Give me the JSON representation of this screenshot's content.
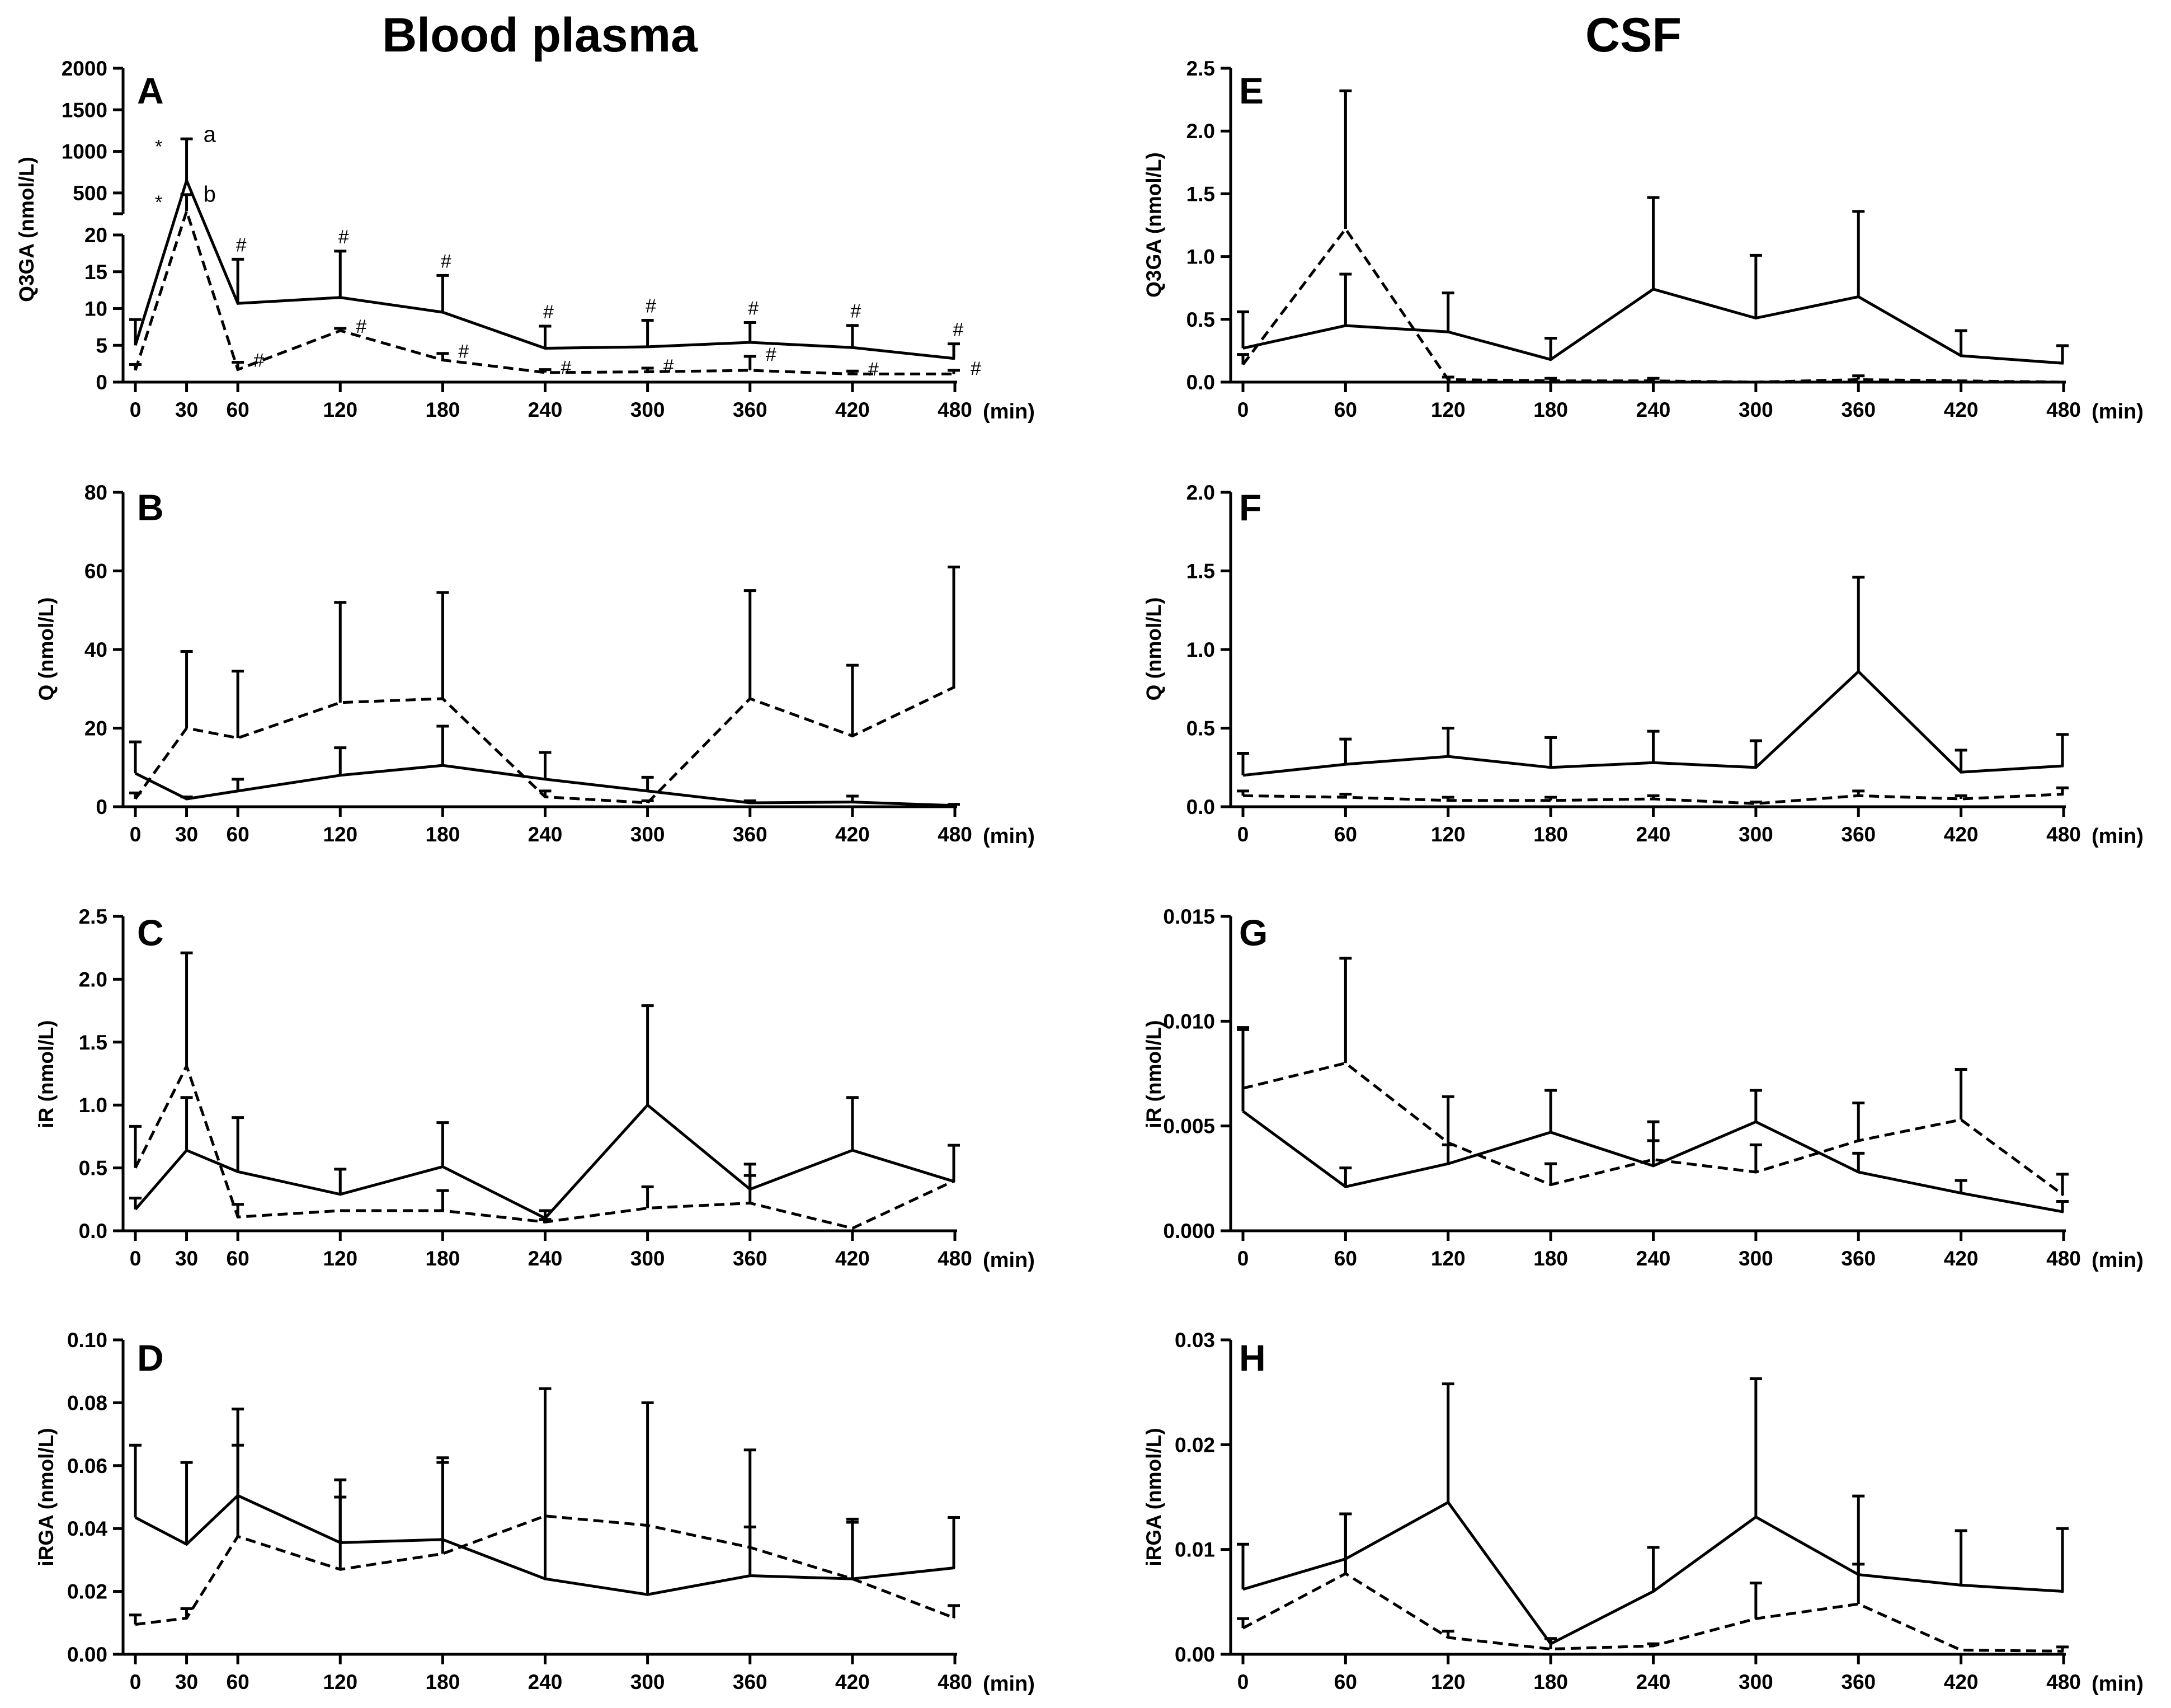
{
  "figure": {
    "column_titles": [
      "Blood plasma",
      "CSF"
    ]
  },
  "chart_data": [
    {
      "id": "A",
      "type": "line",
      "panel_label": "A",
      "column": "Blood plasma",
      "ylabel": "Q3GA (nmol/L)",
      "xunit": "(min)",
      "x": [
        0,
        30,
        60,
        120,
        180,
        240,
        300,
        360,
        420,
        480
      ],
      "xticks": [
        "0",
        "30",
        "60",
        "120",
        "180",
        "240",
        "300",
        "360",
        "420",
        "480"
      ],
      "broken_axis": {
        "lower": {
          "ylim": [
            0,
            20
          ],
          "ticks": [
            0,
            5,
            10,
            15,
            20
          ],
          "tick_labels": [
            "0",
            "5",
            "10",
            "15",
            "20"
          ]
        },
        "upper": {
          "ylim": [
            250,
            2000
          ],
          "ticks": [
            500,
            1000,
            1500,
            2000
          ],
          "tick_labels": [
            "500",
            "1000",
            "1500",
            "2000"
          ]
        }
      },
      "series": [
        {
          "name": "solid",
          "style": "solid",
          "values": [
            5,
            650,
            10.7,
            11.5,
            9.5,
            4.6,
            4.8,
            5.4,
            4.7,
            3.2
          ],
          "errors": [
            3.5,
            500,
            6,
            6.3,
            5,
            3,
            3.6,
            2.7,
            3,
            2
          ]
        },
        {
          "name": "dashed",
          "style": "dashed",
          "values": [
            1.6,
            280,
            1.7,
            7,
            3,
            1.3,
            1.4,
            1.6,
            1.1,
            1.1
          ],
          "errors": [
            0.8,
            200,
            1,
            0.3,
            0.9,
            0.4,
            0.5,
            1.9,
            0.4,
            0.5
          ]
        }
      ],
      "annotations": {
        "peak": [
          {
            "symbol": "*",
            "label": "a"
          },
          {
            "symbol": "*",
            "label": "b"
          }
        ],
        "hash_marks": "#",
        "hash_solid_at": [
          60,
          120,
          180,
          240,
          300,
          360,
          420,
          480
        ],
        "hash_dashed_at": [
          60,
          120,
          180,
          240,
          300,
          360,
          420,
          480
        ]
      }
    },
    {
      "id": "B",
      "type": "line",
      "panel_label": "B",
      "column": "Blood plasma",
      "ylabel": "Q (nmol/L)",
      "xunit": "(min)",
      "x": [
        0,
        30,
        60,
        120,
        180,
        240,
        300,
        360,
        420,
        480
      ],
      "xticks": [
        "0",
        "30",
        "60",
        "120",
        "180",
        "240",
        "300",
        "360",
        "420",
        "480"
      ],
      "ylim": [
        0,
        80
      ],
      "yticks": [
        0,
        20,
        40,
        60,
        80
      ],
      "ytick_labels": [
        "0",
        "20",
        "40",
        "60",
        "80"
      ],
      "series": [
        {
          "name": "solid",
          "style": "solid",
          "values": [
            8.5,
            2,
            4,
            8,
            10.5,
            7,
            4,
            1,
            1.2,
            0.3
          ],
          "errors": [
            8,
            0.5,
            3,
            7,
            10,
            6.8,
            3.5,
            0.5,
            1.5,
            0.3
          ]
        },
        {
          "name": "dashed",
          "style": "dashed",
          "values": [
            2,
            20,
            17.5,
            26.5,
            27.5,
            2.5,
            1,
            27.5,
            18,
            30.5
          ],
          "errors": [
            1.5,
            19.5,
            17,
            25.5,
            27,
            1.5,
            0.5,
            27.5,
            18,
            30.5
          ]
        }
      ]
    },
    {
      "id": "C",
      "type": "line",
      "panel_label": "C",
      "column": "Blood plasma",
      "ylabel": "iR (nmol/L)",
      "xunit": "(min)",
      "x": [
        0,
        30,
        60,
        120,
        180,
        240,
        300,
        360,
        420,
        480
      ],
      "xticks": [
        "0",
        "30",
        "60",
        "120",
        "180",
        "240",
        "300",
        "360",
        "420",
        "480"
      ],
      "ylim": [
        0,
        2.5
      ],
      "yticks": [
        0,
        0.5,
        1.0,
        1.5,
        2.0,
        2.5
      ],
      "ytick_labels": [
        "0.0",
        "0.5",
        "1.0",
        "1.5",
        "2.0",
        "2.5"
      ],
      "series": [
        {
          "name": "solid",
          "style": "solid",
          "values": [
            0.17,
            0.64,
            0.47,
            0.29,
            0.51,
            0.1,
            1.0,
            0.33,
            0.64,
            0.39
          ],
          "errors": [
            0.09,
            0.42,
            0.43,
            0.2,
            0.35,
            0.06,
            0.79,
            0.2,
            0.42,
            0.29
          ]
        },
        {
          "name": "dashed",
          "style": "dashed",
          "values": [
            0.5,
            1.31,
            0.11,
            0.16,
            0.16,
            0.07,
            0.18,
            0.22,
            0.02,
            0.4
          ],
          "errors": [
            0.33,
            0.9,
            0.1,
            0.0,
            0.16,
            0.02,
            0.17,
            0.22,
            0.0,
            0.0
          ]
        }
      ]
    },
    {
      "id": "D",
      "type": "line",
      "panel_label": "D",
      "column": "Blood plasma",
      "ylabel": "iRGA (nmol/L)",
      "xunit": "(min)",
      "x": [
        0,
        30,
        60,
        120,
        180,
        240,
        300,
        360,
        420,
        480
      ],
      "xticks": [
        "0",
        "30",
        "60",
        "120",
        "180",
        "240",
        "300",
        "360",
        "420",
        "480"
      ],
      "ylim": [
        0,
        0.1
      ],
      "yticks": [
        0,
        0.02,
        0.04,
        0.06,
        0.08,
        0.1
      ],
      "ytick_labels": [
        "0.00",
        "0.02",
        "0.04",
        "0.06",
        "0.08",
        "0.10"
      ],
      "series": [
        {
          "name": "solid",
          "style": "solid",
          "values": [
            0.0435,
            0.035,
            0.0505,
            0.0355,
            0.0365,
            0.024,
            0.019,
            0.025,
            0.024,
            0.0275
          ],
          "errors": [
            0.023,
            0.026,
            0.0275,
            0.02,
            0.026,
            0.0605,
            0.061,
            0.04,
            0.019,
            0.016
          ]
        },
        {
          "name": "dashed",
          "style": "dashed",
          "values": [
            0.0095,
            0.0115,
            0.0375,
            0.027,
            0.032,
            0.044,
            0.041,
            0.034,
            0.024,
            0.0115
          ],
          "errors": [
            0.003,
            0.003,
            0.029,
            0.023,
            0.029,
            0.0,
            0.0,
            0.0065,
            0.018,
            0.004
          ]
        }
      ]
    },
    {
      "id": "E",
      "type": "line",
      "panel_label": "E",
      "column": "CSF",
      "ylabel": "Q3GA (nmol/L)",
      "xunit": "(min)",
      "x": [
        0,
        60,
        120,
        180,
        240,
        300,
        360,
        420,
        480
      ],
      "xticks": [
        "0",
        "60",
        "120",
        "180",
        "240",
        "300",
        "360",
        "420",
        "480"
      ],
      "ylim": [
        0,
        2.5
      ],
      "yticks": [
        0,
        0.5,
        1.0,
        1.5,
        2.0,
        2.5
      ],
      "ytick_labels": [
        "0.0",
        "0.5",
        "1.0",
        "1.5",
        "2.0",
        "2.5"
      ],
      "series": [
        {
          "name": "solid",
          "style": "solid",
          "values": [
            0.27,
            0.45,
            0.4,
            0.18,
            0.74,
            0.51,
            0.68,
            0.21,
            0.15
          ],
          "errors": [
            0.29,
            0.41,
            0.31,
            0.17,
            0.73,
            0.5,
            0.68,
            0.2,
            0.14
          ]
        },
        {
          "name": "dashed",
          "style": "dashed",
          "values": [
            0.14,
            1.22,
            0.02,
            0.01,
            0.01,
            0.0,
            0.02,
            0.01,
            0.0
          ],
          "errors": [
            0.08,
            1.1,
            0.02,
            0.02,
            0.02,
            0.0,
            0.03,
            0.0,
            0.0
          ]
        }
      ]
    },
    {
      "id": "F",
      "type": "line",
      "panel_label": "F",
      "column": "CSF",
      "ylabel": "Q (nmol/L)",
      "xunit": "(min)",
      "x": [
        0,
        60,
        120,
        180,
        240,
        300,
        360,
        420,
        480
      ],
      "xticks": [
        "0",
        "60",
        "120",
        "180",
        "240",
        "300",
        "360",
        "420",
        "480"
      ],
      "ylim": [
        0,
        2.0
      ],
      "yticks": [
        0,
        0.5,
        1.0,
        1.5,
        2.0
      ],
      "ytick_labels": [
        "0.0",
        "0.5",
        "1.0",
        "1.5",
        "2.0"
      ],
      "series": [
        {
          "name": "solid",
          "style": "solid",
          "values": [
            0.2,
            0.27,
            0.32,
            0.25,
            0.28,
            0.25,
            0.86,
            0.22,
            0.26
          ],
          "errors": [
            0.14,
            0.16,
            0.18,
            0.19,
            0.2,
            0.17,
            0.6,
            0.14,
            0.2
          ]
        },
        {
          "name": "dashed",
          "style": "dashed",
          "values": [
            0.07,
            0.06,
            0.04,
            0.04,
            0.05,
            0.02,
            0.07,
            0.05,
            0.08
          ],
          "errors": [
            0.03,
            0.02,
            0.02,
            0.02,
            0.02,
            0.01,
            0.03,
            0.02,
            0.04
          ]
        }
      ]
    },
    {
      "id": "G",
      "type": "line",
      "panel_label": "G",
      "column": "CSF",
      "ylabel": "iR (nmol/L)",
      "xunit": "(min)",
      "x": [
        0,
        60,
        120,
        180,
        240,
        300,
        360,
        420,
        480
      ],
      "xticks": [
        "0",
        "60",
        "120",
        "180",
        "240",
        "300",
        "360",
        "420",
        "480"
      ],
      "ylim": [
        0,
        0.015
      ],
      "yticks": [
        0,
        0.005,
        0.01,
        0.015
      ],
      "ytick_labels": [
        "0.000",
        "0.005",
        "0.010",
        "0.015"
      ],
      "series": [
        {
          "name": "solid",
          "style": "solid",
          "values": [
            0.0057,
            0.0021,
            0.0032,
            0.0047,
            0.0031,
            0.0052,
            0.0028,
            0.0018,
            0.0009
          ],
          "errors": [
            0.0039,
            0.0009,
            0.0009,
            0.002,
            0.0021,
            0.0015,
            0.0009,
            0.0006,
            0.0005
          ]
        },
        {
          "name": "dashed",
          "style": "dashed",
          "values": [
            0.0068,
            0.008,
            0.0042,
            0.0022,
            0.0034,
            0.0028,
            0.0043,
            0.0053,
            0.0017
          ],
          "errors": [
            0.0029,
            0.005,
            0.0022,
            0.001,
            0.0009,
            0.0013,
            0.0018,
            0.0024,
            0.001
          ]
        }
      ]
    },
    {
      "id": "H",
      "type": "line",
      "panel_label": "H",
      "column": "CSF",
      "ylabel": "iRGA (nmol/L)",
      "xunit": "(min)",
      "x": [
        0,
        60,
        120,
        180,
        240,
        300,
        360,
        420,
        480
      ],
      "xticks": [
        "0",
        "60",
        "120",
        "180",
        "240",
        "300",
        "360",
        "420",
        "480"
      ],
      "ylim": [
        0,
        0.03
      ],
      "yticks": [
        0,
        0.01,
        0.02,
        0.03
      ],
      "ytick_labels": [
        "0.00",
        "0.01",
        "0.02",
        "0.03"
      ],
      "series": [
        {
          "name": "solid",
          "style": "solid",
          "values": [
            0.0062,
            0.0091,
            0.0145,
            0.001,
            0.006,
            0.0131,
            0.0076,
            0.0066,
            0.006
          ],
          "errors": [
            0.0043,
            0.0043,
            0.0113,
            0.0005,
            0.0042,
            0.0132,
            0.0075,
            0.0052,
            0.006
          ]
        },
        {
          "name": "dashed",
          "style": "dashed",
          "values": [
            0.0025,
            0.0077,
            0.0016,
            0.0005,
            0.0008,
            0.0034,
            0.0048,
            0.0004,
            0.0003
          ],
          "errors": [
            0.0009,
            0.0057,
            0.0006,
            0.001,
            0.0002,
            0.0034,
            0.0038,
            0.0,
            0.0004
          ]
        }
      ]
    }
  ]
}
